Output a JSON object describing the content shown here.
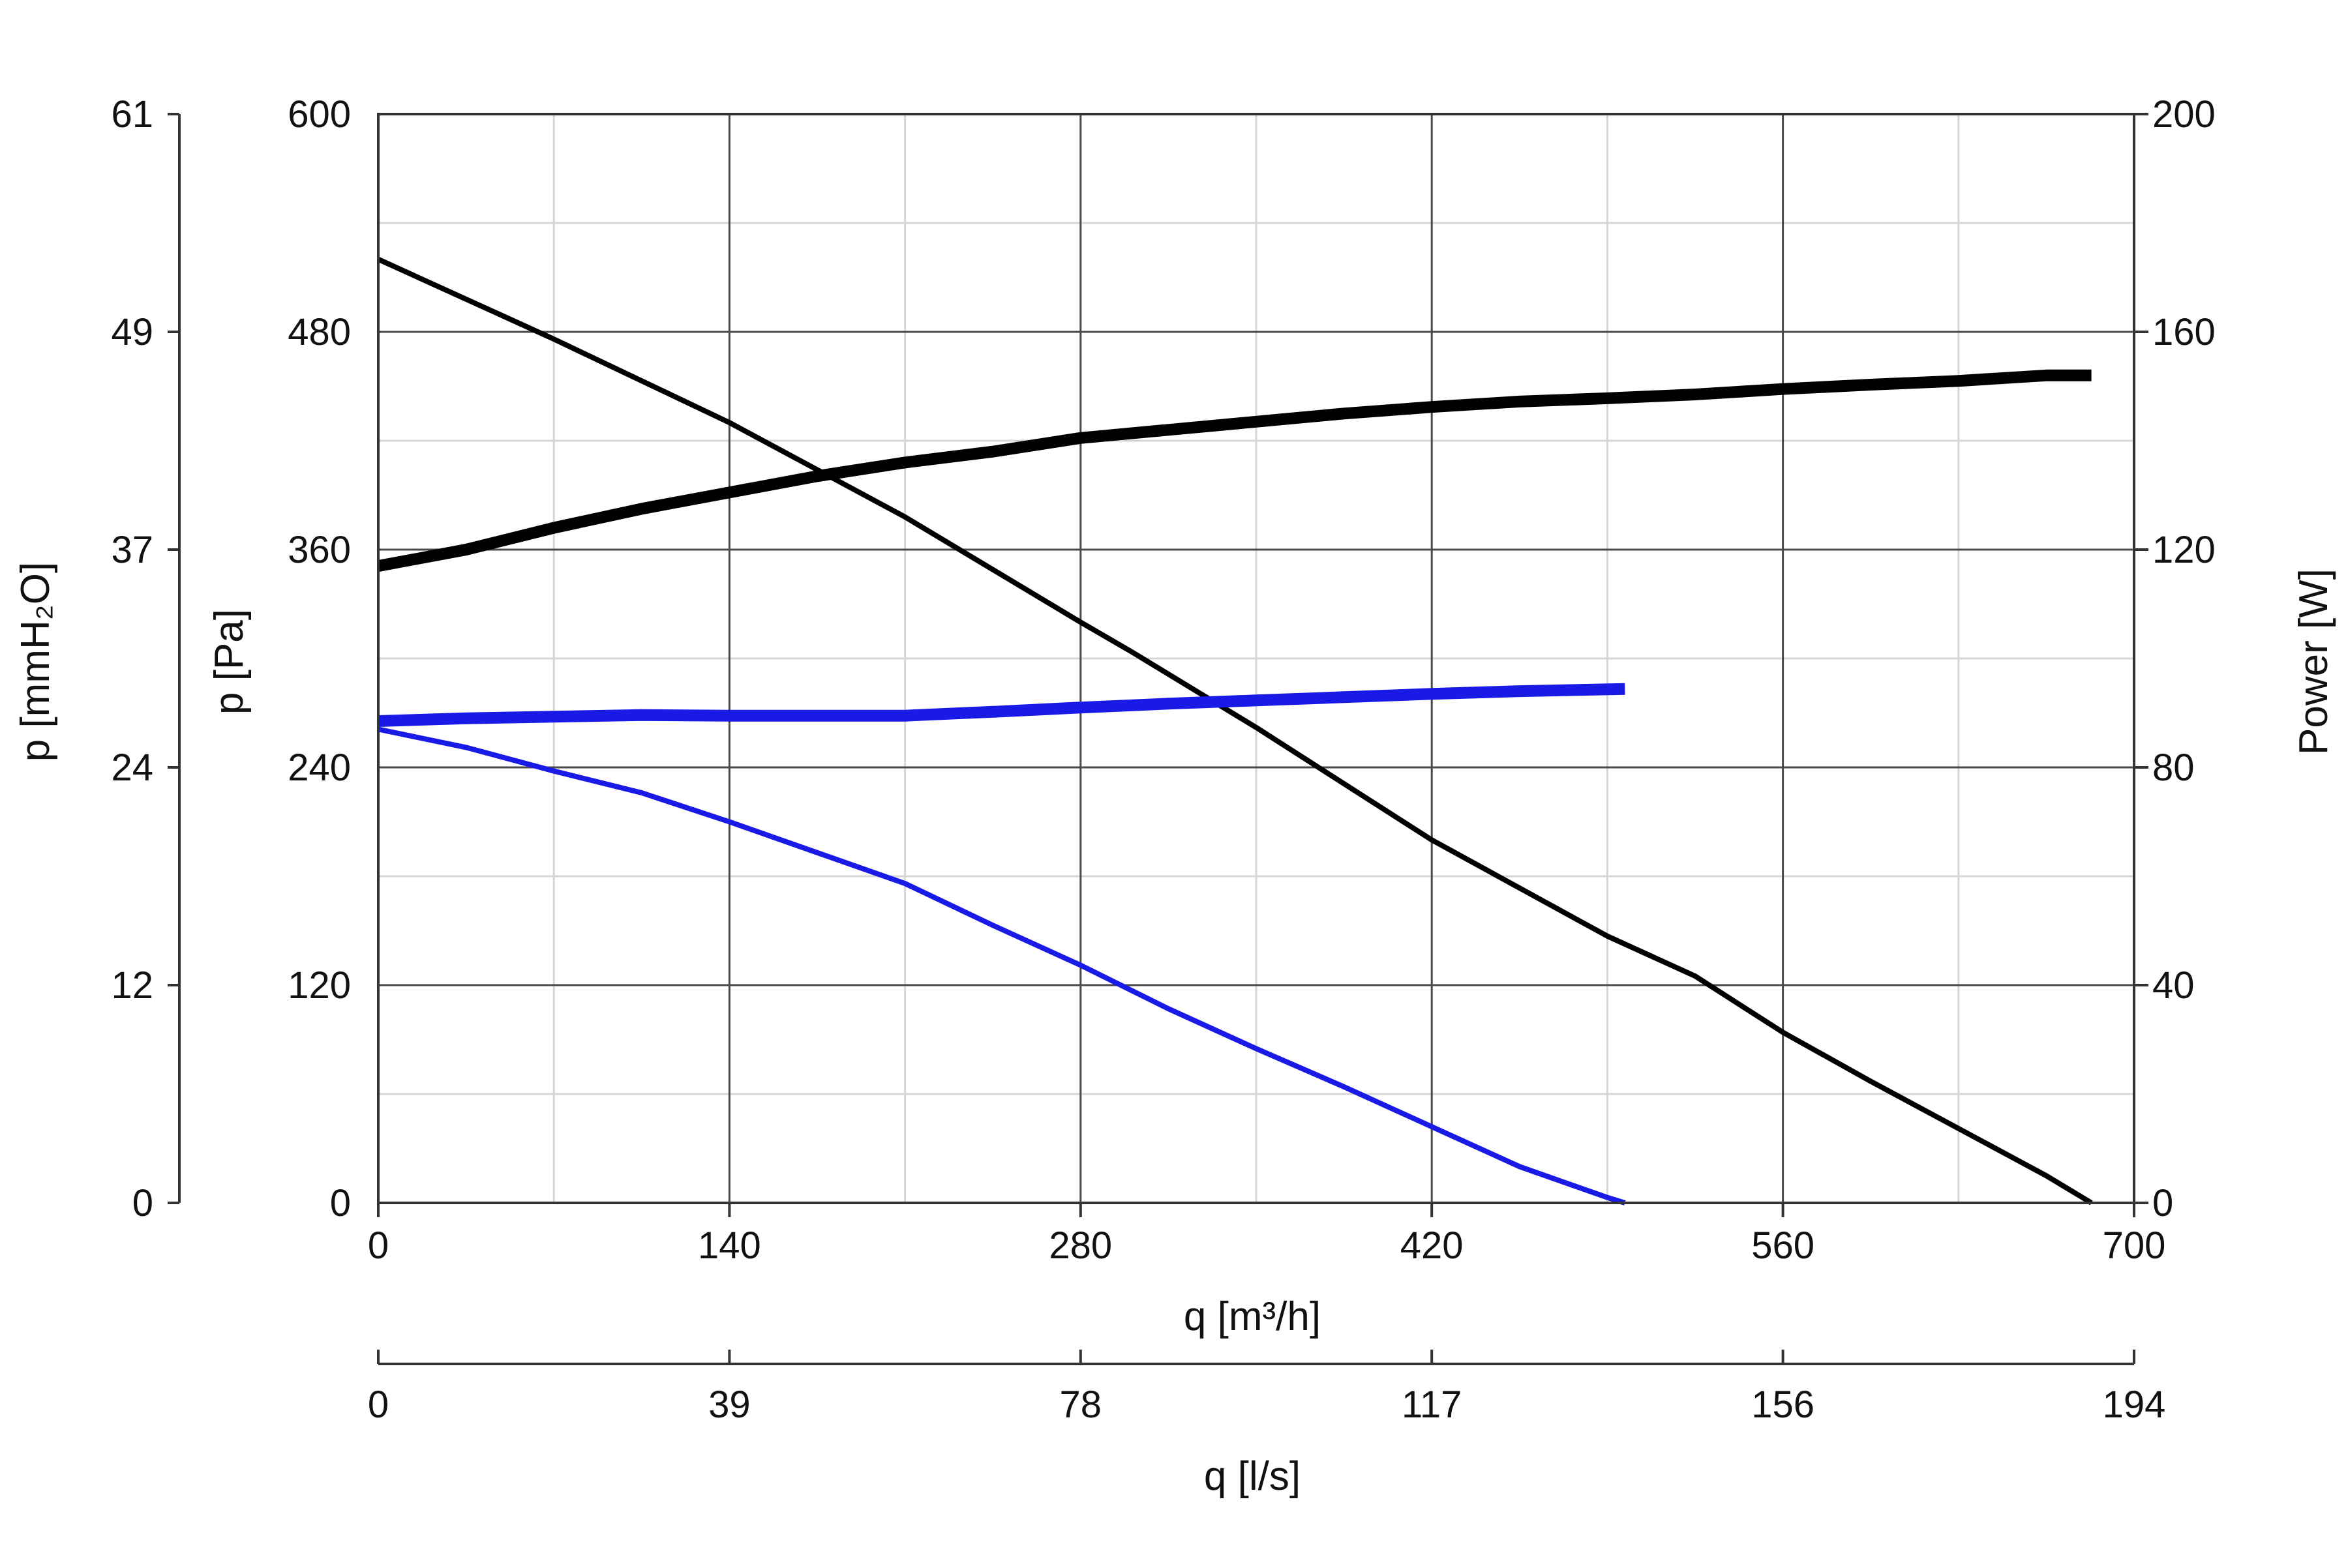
{
  "chart_data": {
    "type": "line",
    "title": "",
    "x_axis": {
      "label": "q [m³/h]",
      "range": [
        0,
        700
      ],
      "ticks": [
        0,
        140,
        280,
        420,
        560,
        700
      ],
      "tick_labels": [
        "0",
        "140",
        "280",
        "420",
        "560",
        "700"
      ],
      "minor_gridlines": [
        70,
        210,
        350,
        490,
        630
      ]
    },
    "x2_axis": {
      "label": "q [l/s]",
      "range": [
        0,
        194
      ],
      "tick_labels": [
        "0",
        "39",
        "78",
        "117",
        "156",
        "194"
      ]
    },
    "y_axis": {
      "label": "p [Pa]",
      "range": [
        0,
        600
      ],
      "ticks": [
        0,
        120,
        240,
        360,
        480,
        600
      ],
      "tick_labels": [
        "0",
        "120",
        "240",
        "360",
        "480",
        "600"
      ],
      "minor_gridlines": [
        60,
        180,
        300,
        420,
        540
      ]
    },
    "y2_axis": {
      "label": "p [mmH₂O]",
      "range": [
        0,
        61
      ],
      "tick_labels": [
        "0",
        "12",
        "24",
        "37",
        "49",
        "61"
      ]
    },
    "y3_axis": {
      "label": "Power [W]",
      "range": [
        0,
        200
      ],
      "tick_labels": [
        "0",
        "40",
        "80",
        "120",
        "160",
        "200"
      ]
    },
    "grid": true,
    "legend": "none",
    "series": [
      {
        "axis": "pressure",
        "color": "#000000",
        "weight": "thin",
        "points": [
          [
            0,
            520
          ],
          [
            70,
            476
          ],
          [
            140,
            430
          ],
          [
            175,
            404
          ],
          [
            210,
            378
          ],
          [
            280,
            320
          ],
          [
            300,
            304
          ],
          [
            350,
            262
          ],
          [
            420,
            200
          ],
          [
            490,
            147
          ],
          [
            525,
            125
          ],
          [
            560,
            94
          ],
          [
            595,
            67
          ],
          [
            630,
            41
          ],
          [
            665,
            15
          ],
          [
            683,
            0
          ]
        ]
      },
      {
        "axis": "power",
        "color": "#000000",
        "weight": "thick",
        "points": [
          [
            0,
            117
          ],
          [
            35,
            120
          ],
          [
            70,
            124
          ],
          [
            105,
            127.5
          ],
          [
            140,
            130.5
          ],
          [
            175,
            133.5
          ],
          [
            210,
            136
          ],
          [
            245,
            138
          ],
          [
            280,
            140.5
          ],
          [
            315,
            142
          ],
          [
            350,
            143.5
          ],
          [
            385,
            145
          ],
          [
            420,
            146.2
          ],
          [
            455,
            147.2
          ],
          [
            490,
            147.8
          ],
          [
            525,
            148.5
          ],
          [
            560,
            149.5
          ],
          [
            595,
            150.3
          ],
          [
            630,
            151
          ],
          [
            665,
            152
          ],
          [
            683,
            152
          ]
        ]
      },
      {
        "axis": "pressure",
        "color": "#1a1ae6",
        "weight": "thin",
        "points": [
          [
            0,
            261
          ],
          [
            35,
            251
          ],
          [
            70,
            238
          ],
          [
            105,
            226
          ],
          [
            140,
            210
          ],
          [
            175,
            193
          ],
          [
            210,
            176
          ],
          [
            245,
            153
          ],
          [
            280,
            131
          ],
          [
            315,
            107
          ],
          [
            350,
            85
          ],
          [
            385,
            64
          ],
          [
            420,
            42
          ],
          [
            455,
            20
          ],
          [
            490,
            3
          ],
          [
            497,
            0
          ]
        ]
      },
      {
        "axis": "power",
        "color": "#1a1ae6",
        "weight": "thick",
        "points": [
          [
            0,
            88.5
          ],
          [
            35,
            89
          ],
          [
            70,
            89.3
          ],
          [
            105,
            89.6
          ],
          [
            140,
            89.5
          ],
          [
            175,
            89.5
          ],
          [
            210,
            89.5
          ],
          [
            245,
            90.2
          ],
          [
            280,
            91
          ],
          [
            315,
            91.7
          ],
          [
            350,
            92.3
          ],
          [
            385,
            92.9
          ],
          [
            420,
            93.5
          ],
          [
            455,
            94
          ],
          [
            497,
            94.4
          ]
        ]
      }
    ]
  }
}
